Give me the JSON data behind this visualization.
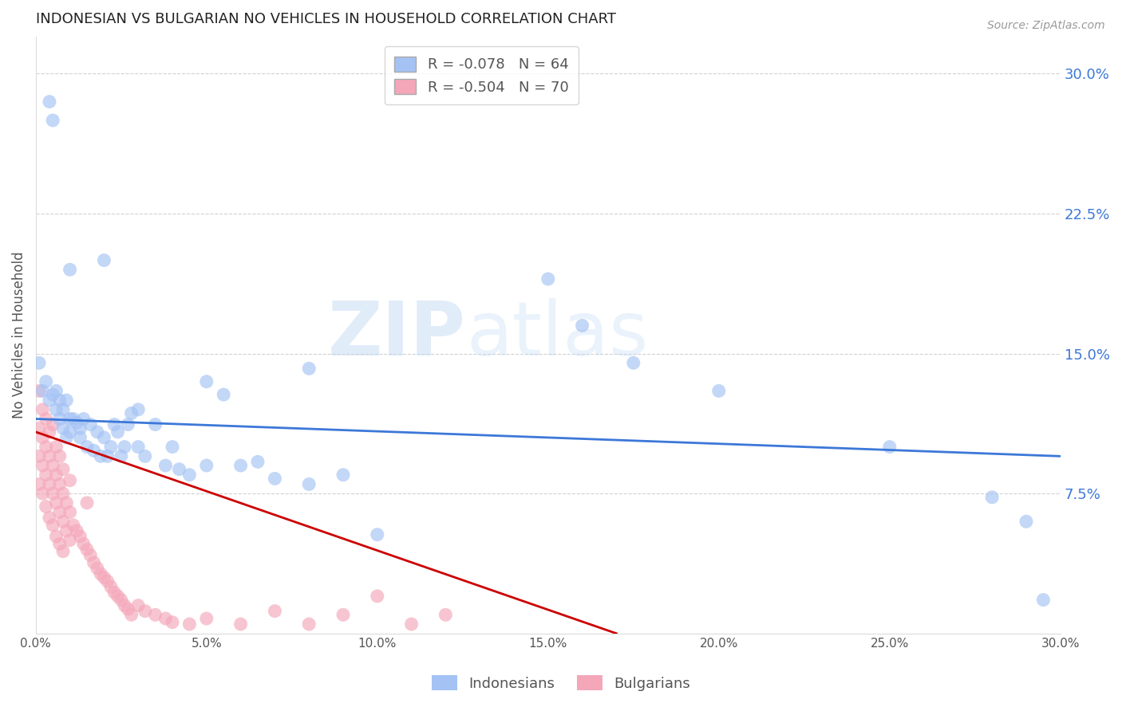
{
  "title": "INDONESIAN VS BULGARIAN NO VEHICLES IN HOUSEHOLD CORRELATION CHART",
  "source": "Source: ZipAtlas.com",
  "ylabel": "No Vehicles in Household",
  "xlim": [
    0.0,
    0.3
  ],
  "ylim": [
    0.0,
    0.32
  ],
  "xticks": [
    0.0,
    0.05,
    0.1,
    0.15,
    0.2,
    0.25,
    0.3
  ],
  "xticklabels": [
    "0.0%",
    "5.0%",
    "10.0%",
    "15.0%",
    "20.0%",
    "25.0%",
    "30.0%"
  ],
  "right_ytick_labels": [
    "7.5%",
    "15.0%",
    "22.5%",
    "30.0%"
  ],
  "right_ytick_vals": [
    0.075,
    0.15,
    0.225,
    0.3
  ],
  "indonesian_color": "#a4c2f4",
  "bulgarian_color": "#f4a7b9",
  "indonesian_line_color": "#3c78d8",
  "bulgarian_line_color": "#cc0000",
  "legend_R_indo": "R = -0.078",
  "legend_N_indo": "N = 64",
  "legend_R_bulg": "R = -0.504",
  "legend_N_bulg": "N = 70",
  "legend_label_indo": "Indonesians",
  "legend_label_bulg": "Bulgarians",
  "watermark_zip": "ZIP",
  "watermark_atlas": "atlas",
  "background_color": "#ffffff",
  "grid_color": "#cccccc",
  "title_color": "#222222",
  "right_tick_color": "#3c78d8",
  "indonesian_x": [
    0.001,
    0.002,
    0.003,
    0.004,
    0.004,
    0.005,
    0.005,
    0.006,
    0.006,
    0.007,
    0.007,
    0.008,
    0.008,
    0.009,
    0.009,
    0.01,
    0.01,
    0.011,
    0.012,
    0.013,
    0.013,
    0.014,
    0.015,
    0.016,
    0.017,
    0.018,
    0.019,
    0.02,
    0.021,
    0.022,
    0.023,
    0.024,
    0.025,
    0.026,
    0.027,
    0.028,
    0.03,
    0.032,
    0.035,
    0.038,
    0.04,
    0.042,
    0.045,
    0.05,
    0.055,
    0.06,
    0.065,
    0.07,
    0.08,
    0.09,
    0.1,
    0.15,
    0.16,
    0.175,
    0.2,
    0.25,
    0.28,
    0.29,
    0.01,
    0.02,
    0.03,
    0.05,
    0.08,
    0.295
  ],
  "indonesian_y": [
    0.145,
    0.13,
    0.135,
    0.125,
    0.285,
    0.128,
    0.275,
    0.13,
    0.12,
    0.125,
    0.115,
    0.12,
    0.11,
    0.125,
    0.105,
    0.115,
    0.108,
    0.115,
    0.113,
    0.11,
    0.105,
    0.115,
    0.1,
    0.112,
    0.098,
    0.108,
    0.095,
    0.105,
    0.095,
    0.1,
    0.112,
    0.108,
    0.095,
    0.1,
    0.112,
    0.118,
    0.1,
    0.095,
    0.112,
    0.09,
    0.1,
    0.088,
    0.085,
    0.09,
    0.128,
    0.09,
    0.092,
    0.083,
    0.08,
    0.085,
    0.053,
    0.19,
    0.165,
    0.145,
    0.13,
    0.1,
    0.073,
    0.06,
    0.195,
    0.2,
    0.12,
    0.135,
    0.142,
    0.018
  ],
  "bulgarian_x": [
    0.001,
    0.001,
    0.001,
    0.002,
    0.002,
    0.002,
    0.003,
    0.003,
    0.003,
    0.004,
    0.004,
    0.004,
    0.005,
    0.005,
    0.005,
    0.006,
    0.006,
    0.006,
    0.007,
    0.007,
    0.007,
    0.008,
    0.008,
    0.008,
    0.009,
    0.009,
    0.01,
    0.01,
    0.011,
    0.012,
    0.013,
    0.014,
    0.015,
    0.016,
    0.017,
    0.018,
    0.019,
    0.02,
    0.021,
    0.022,
    0.023,
    0.024,
    0.025,
    0.026,
    0.027,
    0.028,
    0.03,
    0.032,
    0.035,
    0.038,
    0.04,
    0.045,
    0.05,
    0.06,
    0.07,
    0.08,
    0.09,
    0.1,
    0.11,
    0.12,
    0.001,
    0.002,
    0.003,
    0.004,
    0.005,
    0.006,
    0.007,
    0.008,
    0.01,
    0.015
  ],
  "bulgarian_y": [
    0.11,
    0.095,
    0.08,
    0.105,
    0.09,
    0.075,
    0.1,
    0.085,
    0.068,
    0.095,
    0.08,
    0.062,
    0.09,
    0.075,
    0.058,
    0.085,
    0.07,
    0.052,
    0.08,
    0.065,
    0.048,
    0.075,
    0.06,
    0.044,
    0.07,
    0.055,
    0.065,
    0.05,
    0.058,
    0.055,
    0.052,
    0.048,
    0.045,
    0.042,
    0.038,
    0.035,
    0.032,
    0.03,
    0.028,
    0.025,
    0.022,
    0.02,
    0.018,
    0.015,
    0.013,
    0.01,
    0.015,
    0.012,
    0.01,
    0.008,
    0.006,
    0.005,
    0.008,
    0.005,
    0.012,
    0.005,
    0.01,
    0.02,
    0.005,
    0.01,
    0.13,
    0.12,
    0.115,
    0.108,
    0.112,
    0.1,
    0.095,
    0.088,
    0.082,
    0.07
  ]
}
